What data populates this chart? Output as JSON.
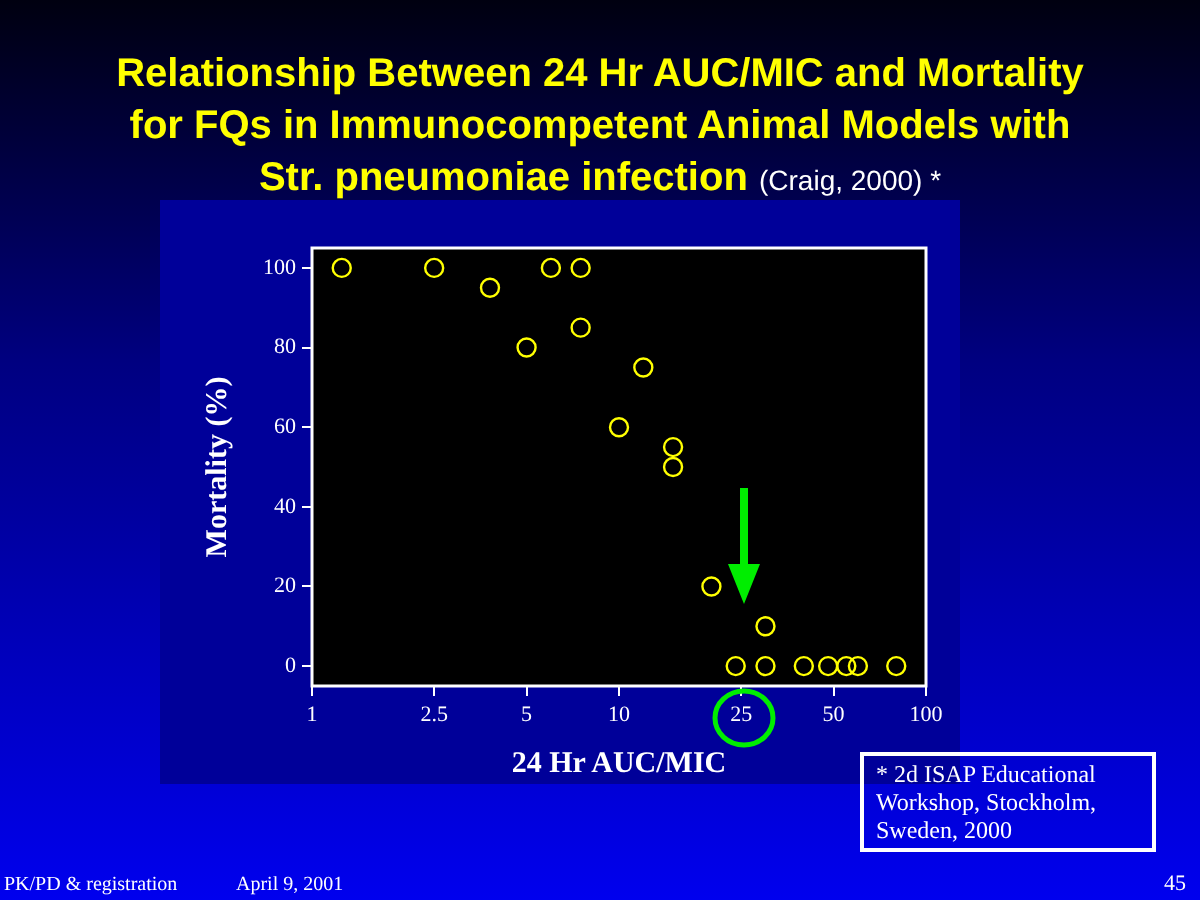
{
  "chart_data": {
    "type": "scatter",
    "title": "Relationship Between 24 Hr AUC/MIC and Mortality for FQs in Immunocompetent Animal Models with Str. pneumoniae infection",
    "subtitle": "(Craig, 2000) *",
    "xlabel": "24 Hr AUC/MIC",
    "ylabel": "Mortality (%)",
    "series": [
      {
        "color": "#ffff00",
        "x": [
          1.25,
          2.5,
          3.8,
          5,
          6,
          7.5,
          7.5,
          10,
          12,
          15,
          15,
          20,
          24,
          30,
          30,
          40,
          48,
          55,
          60,
          80
        ],
        "values": [
          100,
          100,
          95,
          80,
          100,
          100,
          85,
          60,
          75,
          55,
          50,
          20,
          0,
          10,
          0,
          0,
          0,
          0,
          0,
          0
        ]
      }
    ],
    "log": "x",
    "xlim": [
      1,
      100
    ],
    "xticks": [
      1,
      2.5,
      5,
      10,
      25,
      50,
      100
    ],
    "ylim": [
      -5,
      105
    ],
    "yticks": [
      0,
      20,
      40,
      60,
      80,
      100
    ],
    "grid": false,
    "legend": false,
    "marker": "circle",
    "annotations": [
      "* 2d ISAP Educational Workshop, Stockholm, Sweden, 2000",
      "PK/PD & registration",
      "April 9, 2001",
      "45"
    ]
  }
}
